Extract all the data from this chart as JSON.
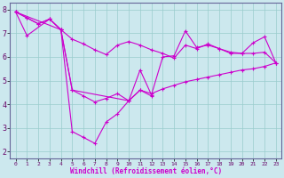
{
  "xlabel": "Windchill (Refroidissement éolien,°C)",
  "background_color": "#cce8ee",
  "line_color": "#cc00cc",
  "grid_color": "#99cccc",
  "xlim": [
    -0.5,
    23.5
  ],
  "ylim": [
    1.7,
    8.3
  ],
  "yticks": [
    2,
    3,
    4,
    5,
    6,
    7,
    8
  ],
  "xticks": [
    0,
    1,
    2,
    3,
    4,
    5,
    6,
    7,
    8,
    9,
    10,
    11,
    12,
    13,
    14,
    15,
    16,
    17,
    18,
    19,
    20,
    21,
    22,
    23
  ],
  "series1_x": [
    0,
    1,
    3,
    4,
    5,
    10,
    11,
    12
  ],
  "series1_y": [
    7.9,
    6.9,
    7.6,
    7.15,
    4.6,
    4.15,
    4.6,
    4.35
  ],
  "series2_x": [
    0,
    4,
    5,
    6,
    7,
    8,
    9,
    10
  ],
  "series2_y": [
    7.9,
    7.15,
    2.85,
    2.6,
    2.35,
    3.25,
    3.6,
    4.15
  ],
  "series3_x": [
    10,
    11,
    12,
    13,
    14,
    15,
    16,
    17,
    18,
    19,
    20,
    21,
    22,
    23
  ],
  "series3_y": [
    4.15,
    5.45,
    4.4,
    6.0,
    6.05,
    7.1,
    6.4,
    6.5,
    6.35,
    6.15,
    6.15,
    6.6,
    6.85,
    5.75
  ],
  "series4_x": [
    0,
    1,
    2,
    3,
    4,
    5,
    6,
    7,
    8,
    9,
    10,
    11,
    12,
    13,
    14,
    15,
    16,
    17,
    18,
    19,
    20,
    21,
    22,
    23
  ],
  "series4_y": [
    7.9,
    7.65,
    7.4,
    7.6,
    7.15,
    6.75,
    6.55,
    6.3,
    6.1,
    6.5,
    6.65,
    6.5,
    6.3,
    6.15,
    5.95,
    6.5,
    6.35,
    6.55,
    6.35,
    6.2,
    6.15,
    6.15,
    6.2,
    5.75
  ],
  "series5_x": [
    0,
    1,
    2,
    3,
    4,
    5,
    6,
    7,
    8,
    9,
    10,
    11,
    12,
    13,
    14,
    15,
    16,
    17,
    18,
    19,
    20,
    21,
    22,
    23
  ],
  "series5_y": [
    7.9,
    7.65,
    7.4,
    7.6,
    7.15,
    4.6,
    4.35,
    4.1,
    4.25,
    4.45,
    4.15,
    4.6,
    4.45,
    4.65,
    4.8,
    4.95,
    5.05,
    5.15,
    5.25,
    5.35,
    5.45,
    5.5,
    5.6,
    5.75
  ]
}
